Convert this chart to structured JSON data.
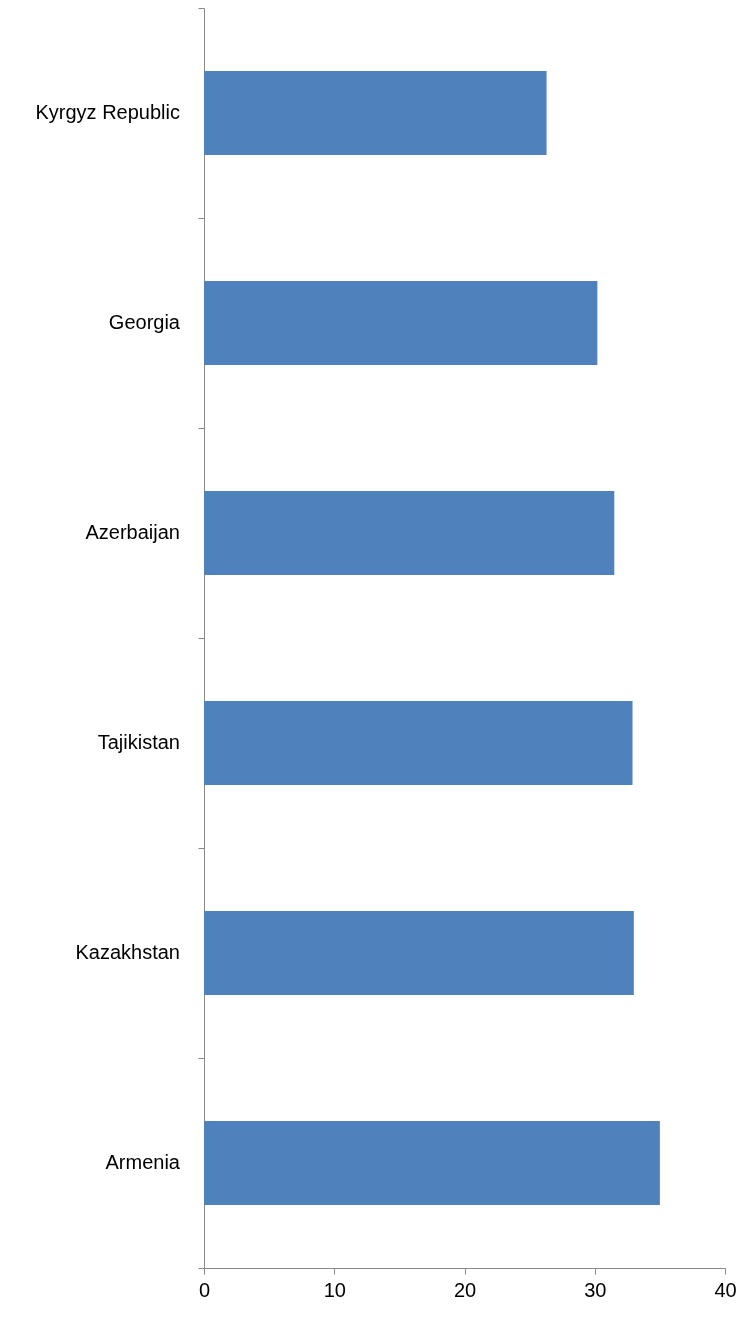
{
  "chart_data": {
    "type": "bar",
    "orientation": "horizontal",
    "categories": [
      "Kyrgyz Republic",
      "Georgia",
      "Azerbaijan",
      "Tajikistan",
      "Kazakhstan",
      "Armenia"
    ],
    "values": [
      26.3,
      30.2,
      31.5,
      32.9,
      33.0,
      35.0
    ],
    "color": "#4f81bd",
    "xlim": [
      0,
      40
    ],
    "xticks": [
      0,
      10,
      20,
      30,
      40
    ],
    "grid": false
  }
}
